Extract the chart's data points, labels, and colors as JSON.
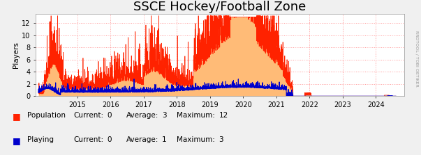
{
  "title": "SSCE Hockey/Football Zone",
  "ylabel": "Players",
  "xlim_start": 2013.75,
  "xlim_end": 2024.85,
  "ylim_bottom": 0,
  "ylim_top": 13.5,
  "yticks": [
    0,
    2,
    4,
    6,
    8,
    10,
    12
  ],
  "xticks": [
    2015,
    2016,
    2017,
    2018,
    2019,
    2020,
    2021,
    2022,
    2023,
    2024
  ],
  "grid_color": "#ff9999",
  "bg_color": "#f0f0f0",
  "plot_bg_color": "#ffffff",
  "population_color": "#ff2200",
  "population_fill": "#ffbb77",
  "playing_color": "#0000cc",
  "title_fontsize": 13,
  "legend_items": [
    {
      "label": "Population",
      "color": "#ff2200",
      "fill": "#ffbb77",
      "current": 0,
      "average": 3,
      "maximum": 12
    },
    {
      "label": "Playing",
      "color": "#0000cc",
      "fill": "#0000cc",
      "current": 0,
      "average": 1,
      "maximum": 3
    }
  ],
  "watermark": "RRDTOOL / TOBI OETIKER",
  "arrow_color": "#cc0000",
  "n_points": 3800,
  "t_start": 2013.83,
  "t_end": 2024.6
}
